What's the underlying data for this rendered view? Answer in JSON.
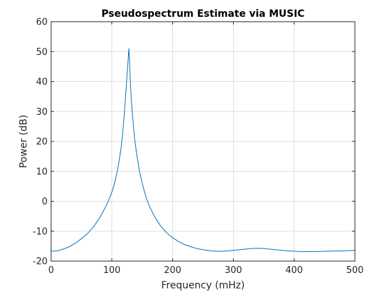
{
  "chart_data": {
    "type": "line",
    "title": "Pseudospectrum Estimate via MUSIC",
    "xlabel": "Frequency (mHz)",
    "ylabel": "Power (dB)",
    "xlim": [
      0,
      500
    ],
    "ylim": [
      -20,
      60
    ],
    "xticks": [
      0,
      100,
      200,
      300,
      400,
      500
    ],
    "yticks": [
      -20,
      -10,
      0,
      10,
      20,
      30,
      40,
      50,
      60
    ],
    "grid": true,
    "line_color": "#0072bd",
    "series": [
      {
        "x": [
          0,
          10,
          20,
          30,
          40,
          50,
          60,
          70,
          80,
          90,
          95,
          100,
          105,
          110,
          115,
          118,
          120,
          122,
          124,
          126,
          127,
          128,
          129,
          130,
          131,
          132,
          134,
          136,
          138,
          140,
          143,
          146,
          150,
          155,
          160,
          165,
          170,
          180,
          190,
          200,
          210,
          220,
          230,
          240,
          250,
          260,
          270,
          280,
          290,
          300,
          310,
          320,
          330,
          340,
          350,
          360,
          370,
          380,
          390,
          400,
          410,
          420,
          430,
          440,
          450,
          460,
          470,
          480,
          490,
          500
        ],
        "y": [
          -16.7,
          -16.6,
          -16.0,
          -15.2,
          -14.0,
          -12.5,
          -10.8,
          -8.5,
          -5.5,
          -1.8,
          0.5,
          3.0,
          6.5,
          11.0,
          17.5,
          23.0,
          28.0,
          33.5,
          39.0,
          45.0,
          48.0,
          51.0,
          47.5,
          42.0,
          37.5,
          34.0,
          28.5,
          24.0,
          20.0,
          17.0,
          13.0,
          9.5,
          6.0,
          2.2,
          -0.8,
          -3.0,
          -5.0,
          -8.2,
          -10.5,
          -12.2,
          -13.5,
          -14.5,
          -15.2,
          -15.8,
          -16.2,
          -16.5,
          -16.7,
          -16.7,
          -16.6,
          -16.4,
          -16.2,
          -16.0,
          -15.8,
          -15.7,
          -15.8,
          -16.0,
          -16.2,
          -16.4,
          -16.6,
          -16.7,
          -16.8,
          -16.8,
          -16.8,
          -16.8,
          -16.7,
          -16.7,
          -16.6,
          -16.6,
          -16.5,
          -16.4
        ]
      }
    ]
  }
}
